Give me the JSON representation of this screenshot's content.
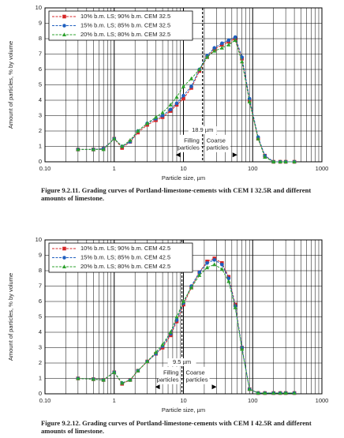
{
  "chart_data": [
    {
      "type": "line",
      "xlabel": "Particle size, µm",
      "ylabel": "Amount of particles, % by volume",
      "caption": "Figure 9.2.11. Grading curves of Portland-limestone-cements with CEM I 32.5R and different amounts of limestone.",
      "log_x": true,
      "grid": true,
      "legend": "upper left",
      "xlim": [
        0.1,
        1000
      ],
      "xticks": [
        {
          "value": 0.1,
          "label": "0.10"
        },
        1,
        10,
        100,
        1000
      ],
      "ylim": [
        0,
        10
      ],
      "yticks": [
        0,
        1,
        2,
        3,
        4,
        5,
        6,
        7,
        8,
        9,
        10
      ],
      "vline": {
        "value": 18.9,
        "label": "18.9 µm"
      },
      "left_note": "Filling particles",
      "right_note": "Coarse particles",
      "x": [
        0.3,
        0.5,
        0.7,
        1,
        1.3,
        1.7,
        2.2,
        3,
        4,
        5,
        6.5,
        8,
        10,
        13,
        17,
        22,
        28,
        36,
        45,
        56,
        70,
        90,
        120,
        150,
        200,
        250,
        300,
        400
      ],
      "series": [
        {
          "name": "10% b.m. LS; 90% b.m. CEM 32.5",
          "color": "#d62728",
          "marker": "square",
          "values": [
            0.8,
            0.8,
            0.85,
            1.5,
            0.9,
            1.3,
            1.9,
            2.4,
            2.7,
            2.9,
            3.3,
            3.7,
            4.1,
            4.8,
            5.9,
            6.8,
            7.3,
            7.6,
            7.8,
            8.0,
            6.7,
            4.0,
            1.5,
            0.4,
            0.0,
            0.0,
            0.0,
            0.0
          ]
        },
        {
          "name": "15% b.m. LS; 85% b.m. CEM 32.5",
          "color": "#1f5fbf",
          "marker": "circle",
          "values": [
            0.8,
            0.8,
            0.85,
            1.5,
            1.0,
            1.3,
            2.0,
            2.5,
            2.8,
            3.0,
            3.4,
            3.8,
            4.3,
            4.9,
            6.0,
            6.9,
            7.4,
            7.7,
            7.9,
            8.1,
            6.8,
            4.1,
            1.6,
            0.4,
            0.0,
            0.0,
            0.0,
            0.0
          ]
        },
        {
          "name": "20% b.m. LS; 80% b.m. CEM 32.5",
          "color": "#2ca02c",
          "marker": "triangle",
          "values": [
            0.8,
            0.8,
            0.8,
            1.5,
            1.0,
            1.4,
            2.0,
            2.5,
            2.9,
            3.2,
            3.7,
            4.2,
            4.9,
            5.4,
            6.0,
            6.8,
            7.2,
            7.4,
            7.6,
            7.9,
            6.5,
            3.9,
            1.5,
            0.3,
            0.0,
            0.0,
            0.0,
            0.0
          ]
        }
      ]
    },
    {
      "type": "line",
      "xlabel": "Particle size, µm",
      "ylabel": "Amount of particles, % by volume",
      "caption": "Figure 9.2.12. Grading curves of Portland-limestone-cements with CEM I 42.5R and different amounts of limestone.",
      "log_x": true,
      "grid": true,
      "legend": "upper left",
      "xlim": [
        0.1,
        1000
      ],
      "xticks": [
        {
          "value": 0.1,
          "label": "0.10"
        },
        1,
        10,
        100,
        1000
      ],
      "ylim": [
        0,
        10
      ],
      "yticks": [
        0,
        1,
        2,
        3,
        4,
        5,
        6,
        7,
        8,
        9,
        10
      ],
      "vline": {
        "value": 9.5,
        "label": "9.5 µm"
      },
      "left_note": "Filling particles",
      "right_note": "Coarse particles",
      "x": [
        0.3,
        0.5,
        0.7,
        1,
        1.3,
        1.7,
        2.2,
        3,
        4,
        5,
        6.5,
        8,
        10,
        13,
        17,
        22,
        28,
        36,
        45,
        56,
        70,
        90,
        120,
        150,
        200,
        250,
        300,
        400
      ],
      "series": [
        {
          "name": "10% b.m. LS; 90% b.m. CEM 42.5",
          "color": "#d62728",
          "marker": "square",
          "values": [
            1.0,
            0.95,
            0.9,
            1.4,
            0.65,
            0.9,
            1.5,
            2.1,
            2.6,
            3.0,
            3.8,
            4.7,
            5.8,
            6.9,
            7.9,
            8.6,
            8.8,
            8.5,
            7.6,
            5.8,
            3.0,
            0.3,
            0.05,
            0.05,
            0.05,
            0.05,
            0.05,
            0.05
          ]
        },
        {
          "name": "15% b.m. LS; 85% b.m. CEM 42.5",
          "color": "#1f5fbf",
          "marker": "circle",
          "values": [
            1.0,
            0.95,
            0.9,
            1.4,
            0.7,
            0.9,
            1.5,
            2.1,
            2.6,
            3.1,
            3.9,
            4.8,
            5.9,
            7.0,
            7.9,
            8.5,
            8.7,
            8.4,
            7.5,
            5.7,
            3.0,
            0.3,
            0.05,
            0.05,
            0.05,
            0.05,
            0.05,
            0.05
          ]
        },
        {
          "name": "20% b.m. LS; 80% b.m. CEM 42.5",
          "color": "#2ca02c",
          "marker": "triangle",
          "values": [
            1.0,
            0.95,
            0.9,
            1.4,
            0.7,
            0.9,
            1.5,
            2.1,
            2.7,
            3.2,
            4.0,
            5.0,
            6.0,
            6.9,
            7.7,
            8.2,
            8.4,
            8.1,
            7.3,
            5.6,
            2.9,
            0.3,
            0.05,
            0.05,
            0.05,
            0.05,
            0.05,
            0.05
          ]
        }
      ]
    }
  ]
}
